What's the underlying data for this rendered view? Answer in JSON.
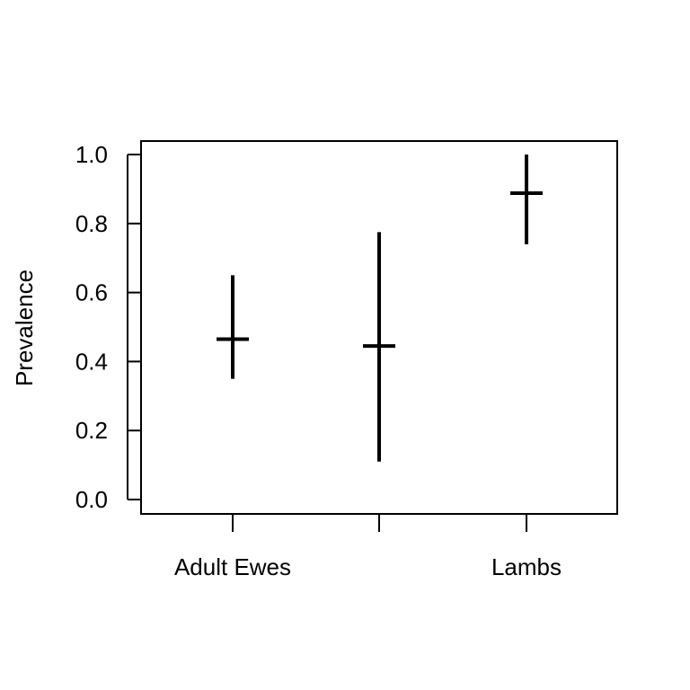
{
  "chart_data": {
    "type": "errorbar",
    "categories": [
      "Adult Ewes",
      "",
      "Lambs"
    ],
    "estimates": [
      0.465,
      0.445,
      0.888
    ],
    "lower": [
      0.35,
      0.11,
      0.74
    ],
    "upper": [
      0.65,
      0.775,
      1.0
    ],
    "ylabel": "Prevalence",
    "xlabel": "",
    "title": "",
    "ylim": [
      0,
      1
    ],
    "yticks": [
      "0.0",
      "0.2",
      "0.4",
      "0.6",
      "0.8",
      "1.0"
    ],
    "grid": false,
    "legend": "none",
    "color": "#000000"
  }
}
